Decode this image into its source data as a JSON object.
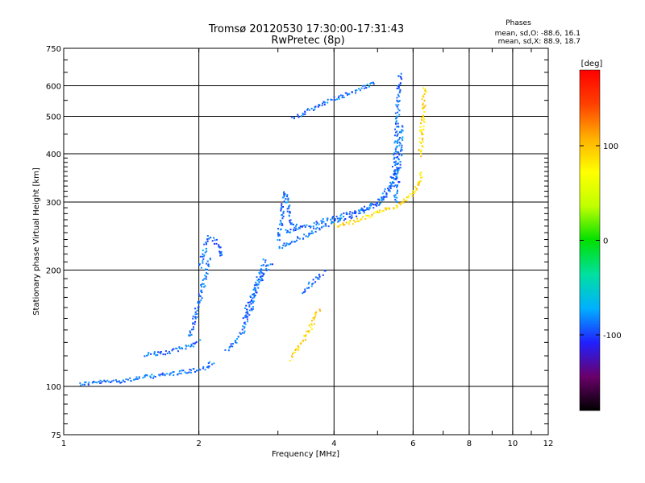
{
  "chart_data": {
    "type": "scatter",
    "title": "Tromsø 20120530 17:30:00-17:31:43",
    "subtitle": "RwPretec (8p)",
    "xlabel": "Frequency [MHz]",
    "ylabel": "Stationary phase Virtual Height [km]",
    "x_scale": "log",
    "y_scale": "log",
    "xlim": [
      1,
      12
    ],
    "ylim": [
      75,
      750
    ],
    "x_ticks": [
      1,
      2,
      4,
      6,
      8,
      10,
      12
    ],
    "y_ticks": [
      75,
      100,
      200,
      300,
      400,
      500,
      600,
      750
    ],
    "grid": true,
    "phase_info": {
      "title": "Phases",
      "line_o": "mean, sd,O: -88.6, 16.1",
      "line_x": "mean, sd,X:  88.9, 18.7"
    },
    "colorbar": {
      "label": "[deg]",
      "range": [
        -180,
        180
      ],
      "ticks": [
        100,
        0,
        -100
      ],
      "colors": [
        "#000000",
        "#6a006a",
        "#2020ff",
        "#00b0ff",
        "#00e0a0",
        "#00e000",
        "#c0ff00",
        "#ffff00",
        "#ffb000",
        "#ff4000",
        "#ff0000"
      ]
    },
    "series": [
      {
        "mode": "O",
        "phase_mean": -88.6,
        "phase_sd": 16.1,
        "traces": [
          {
            "x": [
              1.08,
              1.2,
              1.35,
              1.5,
              1.7,
              1.9,
              2.05,
              2.15
            ],
            "y": [
              102,
              103,
              104,
              106,
              108,
              110,
              112,
              116
            ]
          },
          {
            "x": [
              1.5,
              1.7,
              1.9,
              2.0
            ],
            "y": [
              121,
              123,
              128,
              132
            ]
          },
          {
            "x": [
              1.9,
              1.95,
              2.0,
              2.05,
              2.1
            ],
            "y": [
              135,
              150,
              170,
              190,
              215
            ]
          },
          {
            "x": [
              2.0,
              2.05,
              2.1,
              2.2,
              2.25
            ],
            "y": [
              205,
              225,
              245,
              235,
              215
            ]
          },
          {
            "x": [
              2.3,
              2.4,
              2.5,
              2.6,
              2.7,
              2.8
            ],
            "y": [
              125,
              130,
              140,
              160,
              190,
              215
            ]
          },
          {
            "x": [
              2.5,
              2.6,
              2.7,
              2.8,
              2.9
            ],
            "y": [
              150,
              170,
              185,
              200,
              210
            ]
          },
          {
            "x": [
              3.0,
              3.05,
              3.1,
              3.2,
              3.3
            ],
            "y": [
              240,
              280,
              320,
              270,
              255
            ]
          },
          {
            "x": [
              3.0,
              3.4,
              3.8,
              4.2,
              4.6,
              5.0,
              5.3,
              5.45
            ],
            "y": [
              230,
              245,
              262,
              272,
              285,
              300,
              330,
              380
            ]
          },
          {
            "x": [
              3.1,
              3.5,
              4.0,
              4.5,
              5.0,
              5.4,
              5.5
            ],
            "y": [
              252,
              262,
              275,
              285,
              300,
              330,
              380
            ]
          },
          {
            "x": [
              5.45,
              5.5,
              5.52,
              5.55,
              5.6
            ],
            "y": [
              380,
              450,
              520,
              590,
              650
            ]
          },
          {
            "x": [
              5.45,
              5.5,
              5.55,
              5.6,
              5.62
            ],
            "y": [
              300,
              330,
              360,
              420,
              480
            ]
          },
          {
            "x": [
              3.2,
              3.35,
              3.6,
              3.9,
              4.2,
              4.6,
              4.95
            ],
            "y": [
              500,
              505,
              530,
              555,
              570,
              595,
              615
            ]
          },
          {
            "x": [
              3.4,
              3.6,
              3.8
            ],
            "y": [
              175,
              190,
              200
            ]
          }
        ]
      },
      {
        "mode": "X",
        "phase_mean": 88.9,
        "phase_sd": 18.7,
        "traces": [
          {
            "x": [
              4.0,
              4.4,
              4.8,
              5.2,
              5.6,
              5.9,
              6.1,
              6.25
            ],
            "y": [
              262,
              268,
              278,
              288,
              298,
              312,
              330,
              360
            ]
          },
          {
            "x": [
              6.2,
              6.25,
              6.3,
              6.35
            ],
            "y": [
              400,
              450,
              520,
              600
            ]
          },
          {
            "x": [
              3.2,
              3.3,
              3.5,
              3.7
            ],
            "y": [
              118,
              125,
              140,
              160
            ]
          }
        ]
      }
    ]
  }
}
